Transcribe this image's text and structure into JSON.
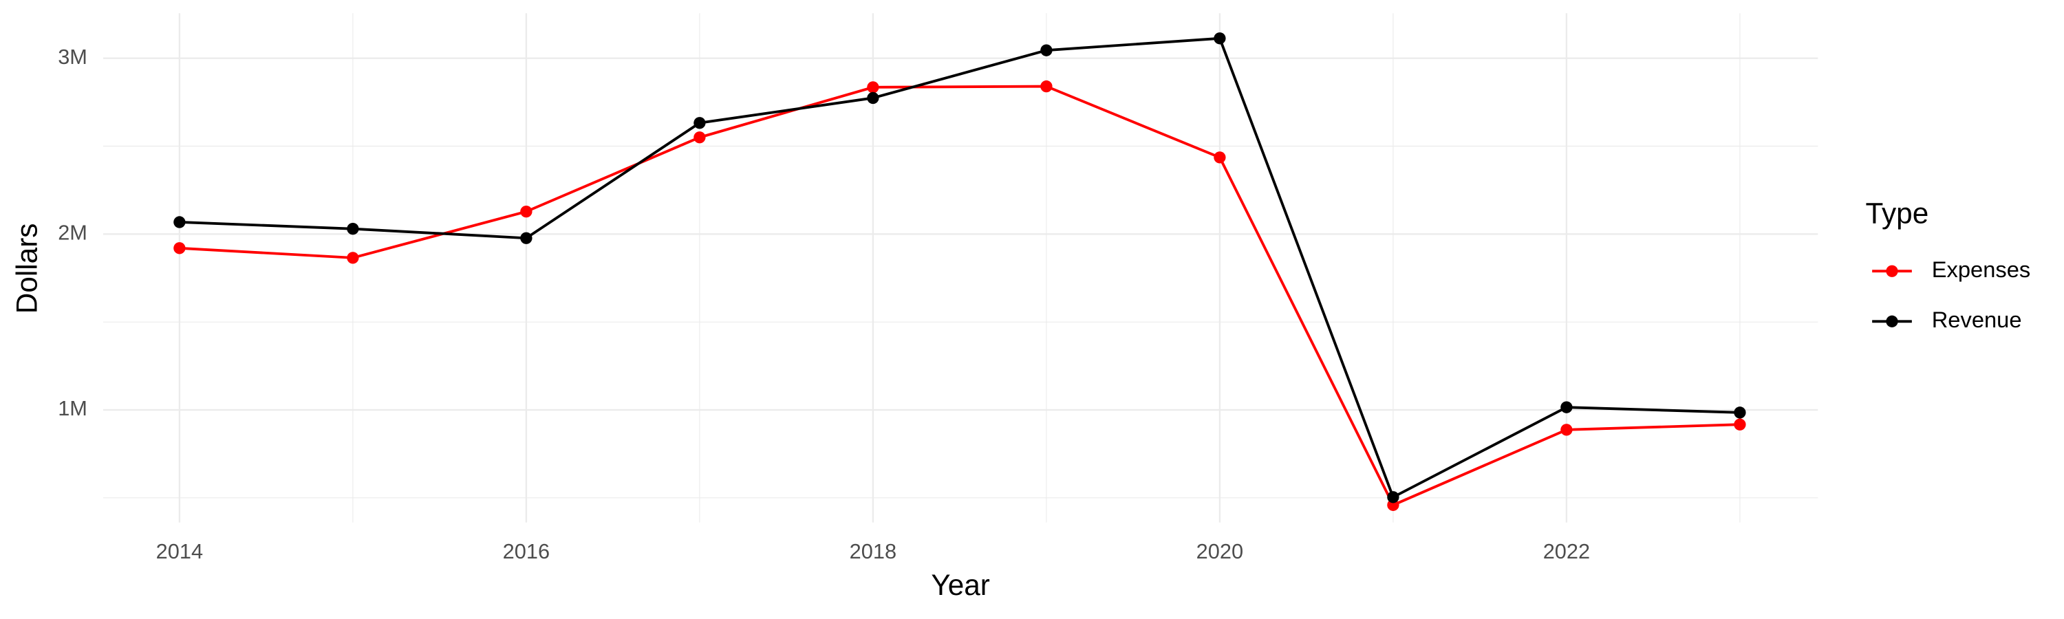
{
  "chart_data": {
    "type": "line",
    "x_label": "Year",
    "y_label": "Dollars",
    "legend_title": "Type",
    "x": [
      2014,
      2015,
      2016,
      2017,
      2018,
      2019,
      2020,
      2021,
      2022,
      2023
    ],
    "series": [
      {
        "name": "Expenses",
        "color": "#ff0000",
        "values": [
          1920000,
          1865000,
          2128000,
          2550000,
          2835000,
          2840000,
          2436000,
          459000,
          887000,
          917000
        ]
      },
      {
        "name": "Revenue",
        "color": "#000000",
        "values": [
          2068000,
          2030000,
          1977000,
          2632000,
          2774000,
          3045000,
          3113000,
          504000,
          1015000,
          985000
        ]
      }
    ],
    "xlim": [
      2013.56,
      2023.45
    ],
    "xticks": [
      2014,
      2016,
      2018,
      2020,
      2022
    ],
    "ylim": [
      360000,
      3256000
    ],
    "yticks": [
      {
        "value": 1000000,
        "label": "1M"
      },
      {
        "value": 2000000,
        "label": "2M"
      },
      {
        "value": 3000000,
        "label": "3M"
      }
    ],
    "grid": true,
    "legend": "right"
  }
}
